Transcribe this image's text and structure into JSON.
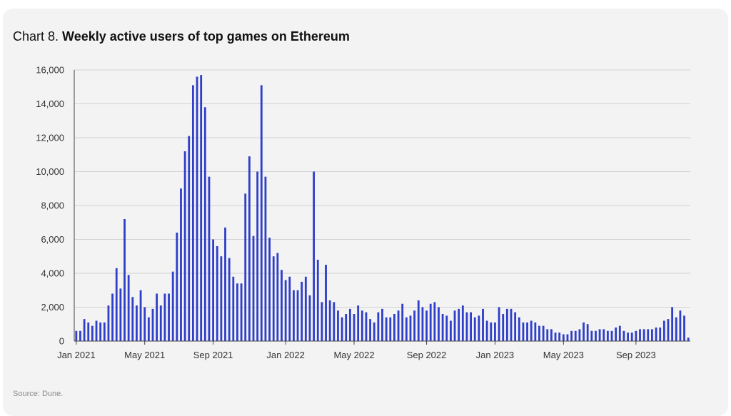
{
  "title": {
    "prefix": "Chart 8.",
    "main": "Weekly active users of top games on Ethereum"
  },
  "source": "Source: Dune.",
  "colors": {
    "bar": "#2f3fc9",
    "grid": "#d2d2d2",
    "background": "#f3f3f3",
    "text": "#333333"
  },
  "chart_data": {
    "type": "bar",
    "title": "Weekly active users of top games on Ethereum",
    "xlabel": "",
    "ylabel": "",
    "ylim": [
      0,
      16000
    ],
    "yticks": [
      0,
      2000,
      4000,
      6000,
      8000,
      10000,
      12000,
      14000,
      16000
    ],
    "ytick_labels": [
      "0",
      "2,000",
      "4,000",
      "6,000",
      "8,000",
      "10,000",
      "12,000",
      "14,000",
      "16,000"
    ],
    "xticks": [
      {
        "label": "Jan 2021",
        "week": 0
      },
      {
        "label": "May 2021",
        "week": 17
      },
      {
        "label": "Sep 2021",
        "week": 34
      },
      {
        "label": "Jan 2022",
        "week": 52
      },
      {
        "label": "May 2022",
        "week": 69
      },
      {
        "label": "Sep 2022",
        "week": 87
      },
      {
        "label": "Jan 2023",
        "week": 104
      },
      {
        "label": "May 2023",
        "week": 121
      },
      {
        "label": "Sep 2023",
        "week": 139
      }
    ],
    "grid": true,
    "legend": "none",
    "series": [
      {
        "name": "Weekly active users",
        "values": [
          600,
          600,
          1300,
          1100,
          900,
          1200,
          1100,
          1100,
          2100,
          2800,
          4300,
          3100,
          7200,
          3900,
          2600,
          2100,
          3000,
          2000,
          1400,
          1900,
          2800,
          2100,
          2800,
          2800,
          4100,
          6400,
          9000,
          11200,
          12100,
          15100,
          15600,
          15700,
          13800,
          9700,
          6000,
          5600,
          5000,
          6700,
          4900,
          3800,
          3400,
          3400,
          8700,
          10900,
          6200,
          10000,
          15100,
          9700,
          6100,
          5000,
          5200,
          4200,
          3600,
          3800,
          3000,
          3000,
          3500,
          3800,
          2700,
          10000,
          4800,
          2300,
          4500,
          2400,
          2300,
          1800,
          1400,
          1600,
          1900,
          1600,
          2100,
          1800,
          1700,
          1300,
          1100,
          1700,
          1900,
          1400,
          1400,
          1600,
          1800,
          2200,
          1400,
          1500,
          1800,
          2400,
          2000,
          1800,
          2200,
          2300,
          2000,
          1600,
          1500,
          1200,
          1800,
          1900,
          2100,
          1700,
          1700,
          1400,
          1500,
          1900,
          1200,
          1100,
          1100,
          2000,
          1600,
          1900,
          1900,
          1700,
          1400,
          1100,
          1100,
          1200,
          1100,
          900,
          900,
          700,
          700,
          500,
          500,
          400,
          400,
          600,
          600,
          700,
          1100,
          1000,
          600,
          600,
          700,
          700,
          600,
          600,
          800,
          900,
          600,
          500,
          500,
          600,
          700,
          700,
          700,
          700,
          800,
          800,
          1200,
          1300,
          2000,
          1400,
          1800,
          1500,
          200
        ]
      }
    ]
  }
}
